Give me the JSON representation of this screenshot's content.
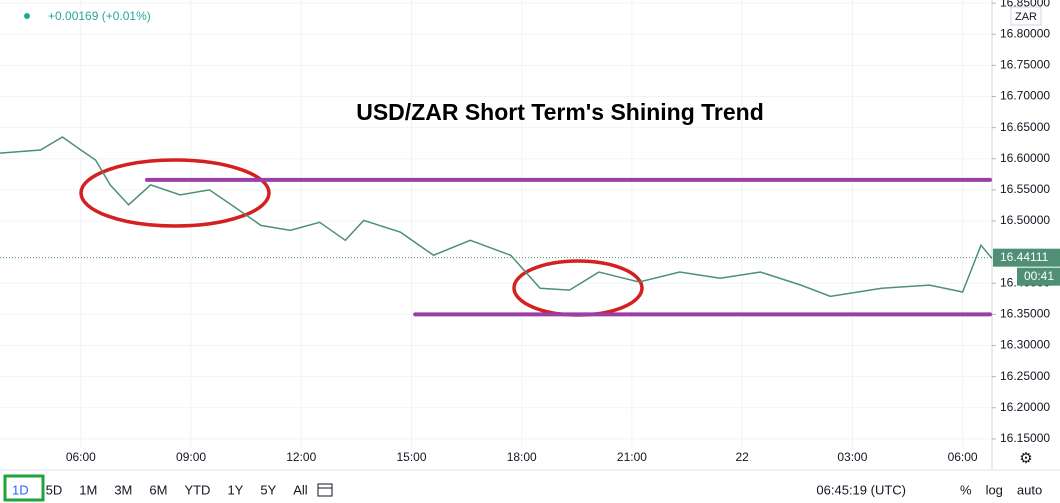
{
  "chart_data": {
    "type": "line",
    "title": "USD/ZAR Short Term's Shining Trend",
    "change": "+0.00169 (+0.01%)",
    "currency": "ZAR",
    "x": [
      3.8,
      4.9,
      5.5,
      6.0,
      6.4,
      6.8,
      7.3,
      7.9,
      8.7,
      9.5,
      10.1,
      10.9,
      11.7,
      12.5,
      13.2,
      13.7,
      14.7,
      15.6,
      16.6,
      17.7,
      18.5,
      19.3,
      20.1,
      21.2,
      22.3,
      23.4,
      24.5,
      25.6,
      26.4,
      27.8,
      29.1,
      30.0,
      30.5,
      30.8
    ],
    "series": [
      {
        "name": "USD/ZAR",
        "color": "#4e8f76",
        "values": [
          16.609,
          16.614,
          16.635,
          16.614,
          16.598,
          16.558,
          16.526,
          16.558,
          16.542,
          16.55,
          16.526,
          16.493,
          16.485,
          16.498,
          16.469,
          16.501,
          16.482,
          16.445,
          16.469,
          16.445,
          16.392,
          16.389,
          16.418,
          16.402,
          16.418,
          16.408,
          16.418,
          16.397,
          16.379,
          16.392,
          16.397,
          16.386,
          16.461,
          16.44
        ]
      }
    ],
    "levels": [
      {
        "value": 16.566,
        "from": 7.8,
        "color": "#9b3fa6"
      },
      {
        "value": 16.35,
        "from": 15.1,
        "color": "#9b3fa6"
      }
    ],
    "last_price": 16.44111,
    "countdown": "00:41",
    "xlim": [
      3.8,
      30.8
    ],
    "ylim": [
      16.137,
      16.855
    ],
    "xticks": [
      {
        "value": 6,
        "label": "06:00"
      },
      {
        "value": 9,
        "label": "09:00"
      },
      {
        "value": 12,
        "label": "12:00"
      },
      {
        "value": 15,
        "label": "15:00"
      },
      {
        "value": 18,
        "label": "18:00"
      },
      {
        "value": 21,
        "label": "21:00"
      },
      {
        "value": 24,
        "label": "22"
      },
      {
        "value": 27,
        "label": "03:00"
      },
      {
        "value": 30,
        "label": "06:00"
      }
    ],
    "yticks": [
      {
        "value": 16.85,
        "label": "16.85000"
      },
      {
        "value": 16.8,
        "label": "16.80000"
      },
      {
        "value": 16.75,
        "label": "16.75000"
      },
      {
        "value": 16.7,
        "label": "16.70000"
      },
      {
        "value": 16.65,
        "label": "16.65000"
      },
      {
        "value": 16.6,
        "label": "16.60000"
      },
      {
        "value": 16.55,
        "label": "16.55000"
      },
      {
        "value": 16.5,
        "label": "16.50000"
      },
      {
        "value": 16.4,
        "label": "16.40000"
      },
      {
        "value": 16.35,
        "label": "16.35000"
      },
      {
        "value": 16.3,
        "label": "16.30000"
      },
      {
        "value": 16.25,
        "label": "16.25000"
      },
      {
        "value": 16.2,
        "label": "16.20000"
      },
      {
        "value": 16.15,
        "label": "16.15000"
      }
    ],
    "grid": true
  },
  "toolbar": {
    "ranges": [
      "1D",
      "5D",
      "1M",
      "3M",
      "6M",
      "YTD",
      "1Y",
      "5Y",
      "All"
    ],
    "clock": "06:45:19 (UTC)",
    "options": [
      "%",
      "log",
      "auto"
    ]
  }
}
